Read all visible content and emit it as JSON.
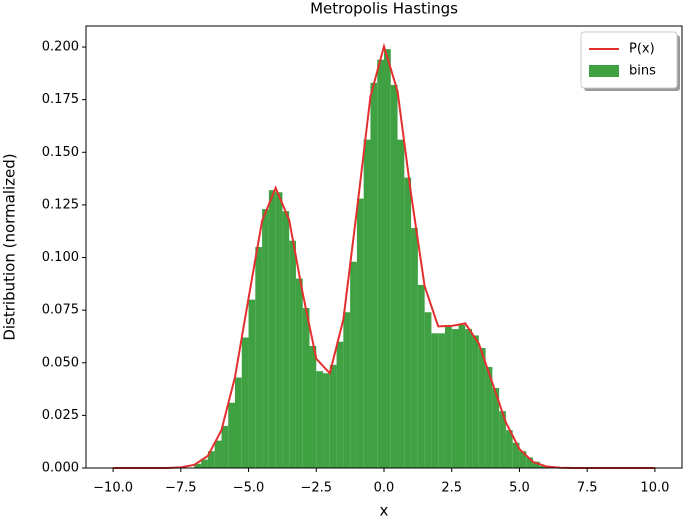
{
  "chart_data": {
    "type": "histogram",
    "title": "Metropolis Hastings",
    "xlabel": "x",
    "ylabel": "Distribution (normalized)",
    "xlim": [
      -11,
      11
    ],
    "ylim": [
      0,
      0.21
    ],
    "xticks": [
      {
        "value": -10,
        "label": "−10.0"
      },
      {
        "value": -7.5,
        "label": "−7.5"
      },
      {
        "value": -5,
        "label": "−5.0"
      },
      {
        "value": -2.5,
        "label": "−2.5"
      },
      {
        "value": 0,
        "label": "0.0"
      },
      2.5,
      {
        "value": 5,
        "label": "5.0"
      },
      7.5,
      {
        "value": 10,
        "label": "10.0"
      }
    ],
    "yticks": [
      {
        "value": 0,
        "label": "0.000"
      },
      {
        "value": 0.025,
        "label": "0.025"
      },
      {
        "value": 0.05,
        "label": "0.050"
      },
      {
        "value": 0.075,
        "label": "0.075"
      },
      {
        "value": 0.1,
        "label": "0.100"
      },
      {
        "value": 0.125,
        "label": "0.125"
      },
      {
        "value": 0.15,
        "label": "0.150"
      },
      {
        "value": 0.175,
        "label": "0.175"
      },
      {
        "value": 0.2,
        "label": "0.200"
      }
    ],
    "legend": "upper right",
    "series": [
      {
        "name": "P(x)",
        "type": "line",
        "color": "#e3302e",
        "x": [
          -10,
          -9.5,
          -9,
          -8.5,
          -8,
          -7.5,
          -7,
          -6.5,
          -6,
          -5.5,
          -5,
          -4.5,
          -4,
          -3.5,
          -3,
          -2.5,
          -2,
          -1.5,
          -1,
          -0.5,
          0,
          0.5,
          1,
          1.5,
          2,
          2.5,
          3,
          3.5,
          4,
          4.5,
          5,
          5.5,
          6,
          6.5,
          7,
          7.5,
          8,
          8.5,
          9,
          9.5,
          10
        ],
        "values": [
          0,
          0,
          0,
          0,
          0,
          0.0003,
          0.0015,
          0.0058,
          0.018,
          0.0432,
          0.0807,
          0.1174,
          0.1331,
          0.1178,
          0.0829,
          0.0519,
          0.045,
          0.0706,
          0.1225,
          0.1765,
          0.2003,
          0.179,
          0.13,
          0.0864,
          0.0673,
          0.0675,
          0.0687,
          0.0591,
          0.0404,
          0.0216,
          0.009,
          0.0029,
          0.0007,
          0.0001,
          0,
          0,
          0,
          0,
          0,
          0,
          0
        ]
      },
      {
        "name": "bins",
        "type": "histogram",
        "color": "#3fa142",
        "bins": [
          -7,
          -6.75,
          -6.5,
          -6.25,
          -6,
          -5.75,
          -5.5,
          -5.25,
          -5,
          -4.75,
          -4.5,
          -4.25,
          -4,
          -3.75,
          -3.5,
          -3.25,
          -3,
          -2.75,
          -2.5,
          -2.25,
          -2,
          -1.75,
          -1.5,
          -1.25,
          -1,
          -0.75,
          -0.5,
          -0.25,
          0,
          0.25,
          0.5,
          0.75,
          1,
          1.25,
          1.5,
          1.75,
          2,
          2.25,
          2.5,
          2.75,
          3,
          3.25,
          3.5,
          3.75,
          4,
          4.25,
          4.5,
          4.75,
          5,
          5.25,
          5.5,
          5.75,
          6
        ],
        "values": [
          0.002,
          0.004,
          0.008,
          0.013,
          0.02,
          0.031,
          0.043,
          0.062,
          0.08,
          0.105,
          0.123,
          0.132,
          0.131,
          0.122,
          0.108,
          0.09,
          0.076,
          0.058,
          0.046,
          0.045,
          0.049,
          0.06,
          0.074,
          0.098,
          0.128,
          0.156,
          0.183,
          0.194,
          0.199,
          0.182,
          0.156,
          0.138,
          0.114,
          0.087,
          0.074,
          0.064,
          0.064,
          0.067,
          0.066,
          0.068,
          0.066,
          0.063,
          0.057,
          0.048,
          0.038,
          0.027,
          0.018,
          0.012,
          0.008,
          0.005,
          0.003,
          0.001
        ]
      }
    ]
  }
}
